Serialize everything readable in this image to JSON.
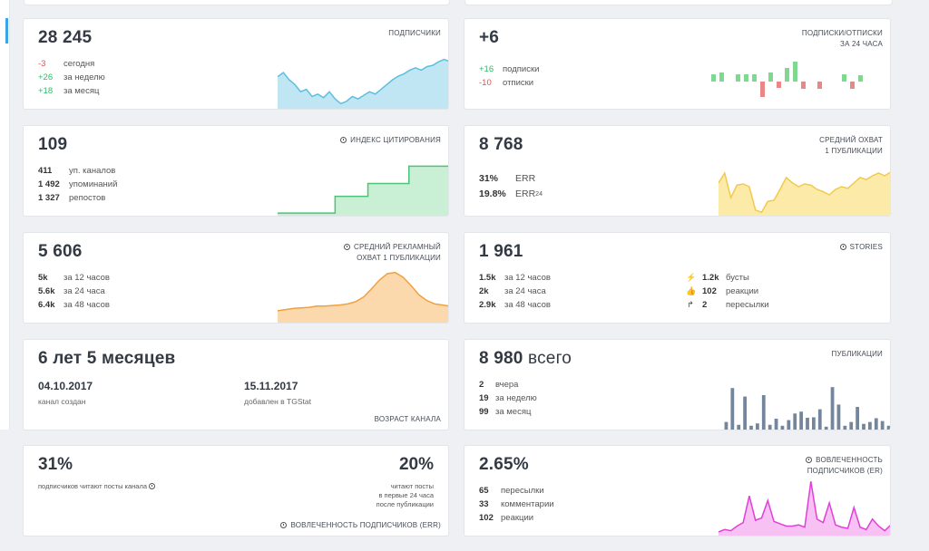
{
  "cards": {
    "subscribers": {
      "value": "28 245",
      "label": "ПОДПИСЧИКИ",
      "rows": [
        {
          "num": "-3",
          "text": "сегодня",
          "tone": "red"
        },
        {
          "num": "+26",
          "text": "за неделю",
          "tone": "green"
        },
        {
          "num": "+18",
          "text": "за месяц",
          "tone": "green"
        }
      ],
      "color": "#5cbfe0",
      "fill": "#bfe6f2"
    },
    "subs_unsubs": {
      "value": "+6",
      "label_line1": "ПОДПИСКИ/ОТПИСКИ",
      "label_line2": "ЗА 24 ЧАСА",
      "rows": [
        {
          "num": "+16",
          "text": "подписки",
          "tone": "green"
        },
        {
          "num": "-10",
          "text": "отписки",
          "tone": "red"
        }
      ],
      "pos_color": "#7fd88f",
      "neg_color": "#e98686"
    },
    "citation": {
      "value": "109",
      "label": "ИНДЕКС ЦИТИРОВАНИЯ",
      "icon": "clock-icon",
      "rows": [
        {
          "num": "411",
          "text": "уп. каналов"
        },
        {
          "num": "1 492",
          "text": "упоминаний"
        },
        {
          "num": "1 327",
          "text": "репостов"
        }
      ],
      "color": "#4fc27a",
      "fill": "#c9efd5"
    },
    "reach": {
      "value": "8 768",
      "label_line1": "СРЕДНИЙ ОХВАТ",
      "label_line2": "1 ПУБЛИКАЦИИ",
      "err": "31%",
      "err_label": "ERR",
      "err24": "19.8%",
      "err24_label": "ERR",
      "err24_sub": "24",
      "color": "#f2c94c",
      "fill": "#fbeaa8"
    },
    "ad_reach": {
      "value": "5 606",
      "label_line1": "СРЕДНИЙ РЕКЛАМНЫЙ",
      "label_line2": "ОХВАТ 1 ПУБЛИКАЦИИ",
      "icon": "clock-icon",
      "rows": [
        {
          "num": "5k",
          "text": "за 12 часов"
        },
        {
          "num": "5.6k",
          "text": "за 24 часа"
        },
        {
          "num": "6.4k",
          "text": "за 48 часов"
        }
      ],
      "color": "#f0a040",
      "fill": "#fbd9ad"
    },
    "stories": {
      "value": "1 961",
      "label": "STORIES",
      "icon": "clock-icon",
      "rows": [
        {
          "num": "1.5k",
          "text": "за 12 часов"
        },
        {
          "num": "2k",
          "text": "за 24 часа"
        },
        {
          "num": "2.9k",
          "text": "за 48 часов"
        }
      ],
      "rows2": [
        {
          "icon": "lightning-icon",
          "glyph": "⚡",
          "num": "1.2k",
          "text": "бусты"
        },
        {
          "icon": "thumbs-up-icon",
          "glyph": "👍",
          "num": "102",
          "text": "реакции"
        },
        {
          "icon": "share-icon",
          "glyph": "↱",
          "num": "2",
          "text": "пересылки"
        }
      ]
    },
    "age": {
      "value": "6 лет 5 месяцев",
      "created_date": "04.10.2017",
      "created_label": "канал создан",
      "added_date": "15.11.2017",
      "added_label": "добавлен в TGStat",
      "label": "ВОЗРАСТ КАНАЛА"
    },
    "posts": {
      "value": "8 980",
      "suffix": "всего",
      "label": "ПУБЛИКАЦИИ",
      "rows": [
        {
          "num": "2",
          "text": "вчера"
        },
        {
          "num": "19",
          "text": "за неделю"
        },
        {
          "num": "99",
          "text": "за месяц"
        }
      ],
      "color": "#74869b"
    },
    "read": {
      "left_value": "31%",
      "left_caption": "подписчиков читают посты канала",
      "right_value": "20%",
      "right_caption_1": "читают посты",
      "right_caption_2": "в первые 24 часа",
      "right_caption_3": "после публикации",
      "label": "ВОВЛЕЧЕННОСТЬ ПОДПИСЧИКОВ (ERR)",
      "icon": "clock-icon"
    },
    "er": {
      "value": "2.65%",
      "label_line1": "ВОВЛЕЧЕННОСТЬ",
      "label_line2": "ПОДПИСЧИКОВ (ER)",
      "icon": "clock-icon",
      "rows": [
        {
          "num": "65",
          "text": "пересылки"
        },
        {
          "num": "33",
          "text": "комментарии"
        },
        {
          "num": "102",
          "text": "реакции"
        }
      ],
      "color": "#e040d8",
      "fill": "#f7c1f3"
    }
  }
}
